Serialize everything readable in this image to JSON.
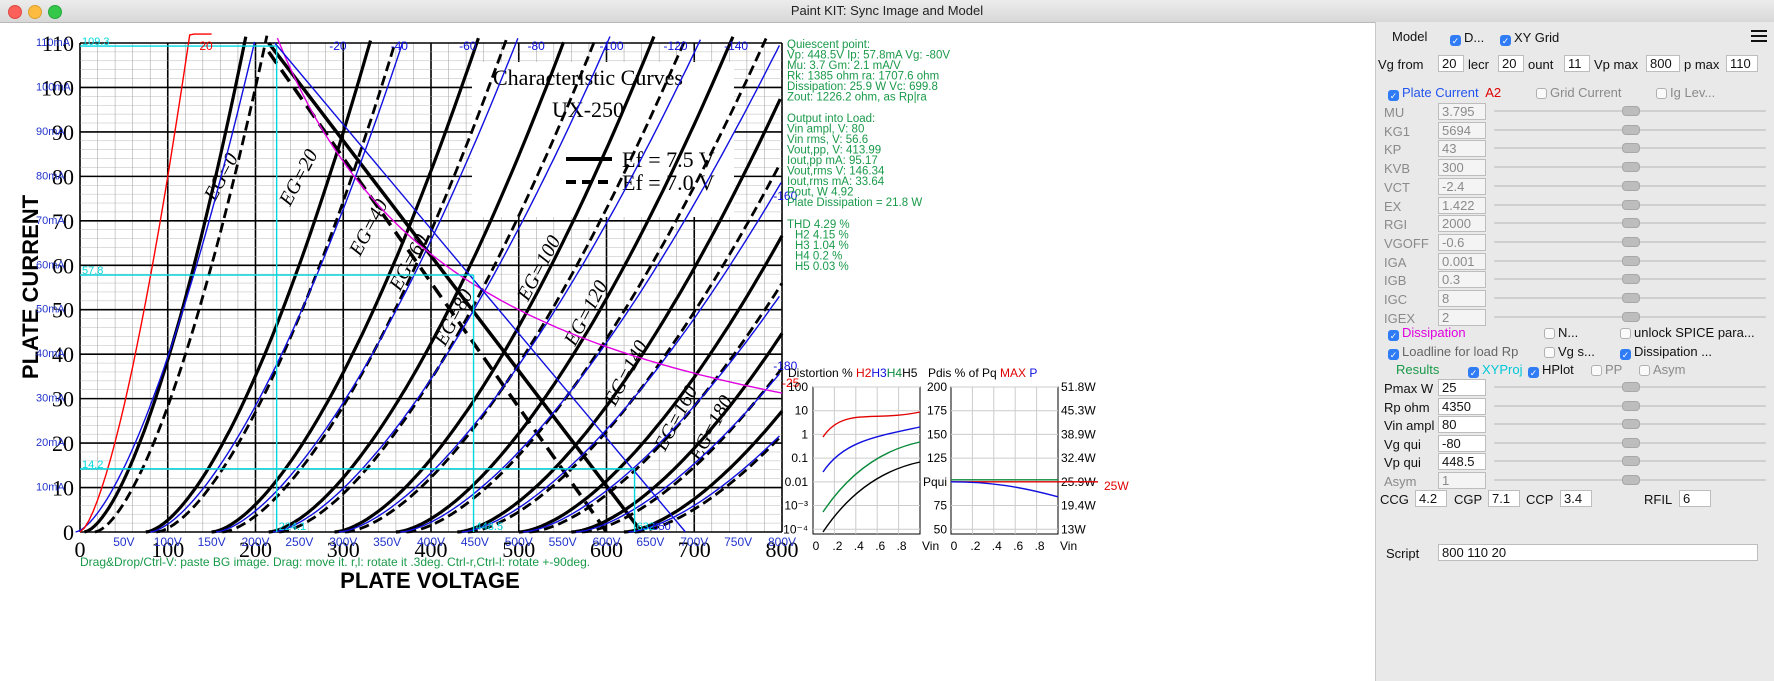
{
  "window": {
    "title": "Paint KIT: Sync Image and Model"
  },
  "image": {
    "title_line1": "Characteristic Curves",
    "title_line2": "UX-250",
    "legend_solid": "Ef = 7.5 V",
    "legend_dashed": "Ef = 7.0 V",
    "y_axis_title": "PLATE CURRENT",
    "x_axis_title": "PLATE VOLTAGE",
    "y_ticks": [
      "0",
      "10",
      "20",
      "30",
      "40",
      "50",
      "60",
      "70",
      "80",
      "90",
      "100",
      "110"
    ],
    "x_ticks": [
      "0",
      "100",
      "200",
      "300",
      "400",
      "500",
      "600",
      "700",
      "800"
    ],
    "curve_labels": [
      "EG=0",
      "EG=20",
      "EG=40",
      "EG=60",
      "EG=80",
      "EG=100",
      "EG=120",
      "EG=140",
      "EG=160",
      "EG=180"
    ]
  },
  "overlay": {
    "y_ticks_ma": [
      "10mA",
      "20mA",
      "30mA",
      "40mA",
      "50mA",
      "60mA",
      "70mA",
      "80mA",
      "90mA",
      "100mA",
      "110mA"
    ],
    "x_ticks_v": [
      "50V",
      "100V",
      "150V",
      "200V",
      "250V",
      "300V",
      "350V",
      "400V",
      "450V",
      "500V",
      "550V",
      "600V",
      "650V",
      "700V",
      "750V",
      "800V"
    ],
    "curve_vg": [
      "20",
      "-20",
      "-40",
      "-60",
      "-80",
      "-100",
      "-120",
      "-140",
      "-160",
      "-180",
      "-25"
    ],
    "cyan_y": [
      "109.3",
      "57.8",
      "14.2"
    ],
    "cyan_x": [
      "224.1",
      "448.5",
      "632",
      "650"
    ],
    "hint": "Drag&Drop/Ctrl-V: paste BG image. Drag: move it. r,l: rotate it .3deg. Ctrl-r,Ctrl-l: rotate +-90deg.",
    "quiescent": [
      "Quiescent point:",
      "Vp: 448.5V  Ip: 57.8mA  Vg: -80V",
      "Mu: 3.7 Gm: 2.1 mA/V",
      "Rk: 1385 ohm ra: 1707.6 ohm",
      "Dissipation: 25.9 W Vc: 699.8",
      "Zout: 1226.2 ohm, as Rp|ra"
    ],
    "output": [
      "Output into Load:",
      "Vin ampl, V: 80",
      "Vin rms,  V: 56.6",
      "Vout,pp,   V: 413.99",
      "Iout,pp   mA: 95.17",
      "Vout,rms   V: 146.34",
      "Iout,rms  mA: 33.64",
      "Pout, W      4.92",
      "Plate Dissipation = 21.8 W"
    ],
    "harmonics": [
      "THD 4.29 %",
      "H2 4.15 %",
      "H3 1.04 %",
      "H4 0.2 %",
      "H5 0.03 %"
    ]
  },
  "dist_chart": {
    "title_prefix": "Distortion % ",
    "h2": "H2",
    "h3": "H3",
    "h4": "H4",
    "h5": "H5",
    "y_ticks": [
      "100",
      "10",
      "1",
      "0.1",
      "0.01",
      "10⁻³",
      "10⁻⁴"
    ],
    "x_ticks": [
      "0",
      ".2",
      ".4",
      ".6",
      ".8"
    ],
    "x_label": "Vin"
  },
  "pdis_chart": {
    "title_prefix": "Pdis % of Pq ",
    "max_label": "MAX",
    "p_label": "P",
    "y_ticks": [
      "200",
      "175",
      "150",
      "125",
      "Pqui",
      "75",
      "50"
    ],
    "right_ticks": [
      "51.8W",
      "45.3W",
      "38.9W",
      "32.4W",
      "25.9W",
      "19.4W",
      "13W"
    ],
    "max_value_label": "25W",
    "x_ticks": [
      "0",
      ".2",
      ".4",
      ".6",
      ".8"
    ],
    "x_label": "Vin"
  },
  "panel": {
    "model_label": "Model",
    "d_label": "D...",
    "xygrid_label": "XY Grid",
    "vg_from_label": "Vg from",
    "vg_from": "20",
    "lecr_label": "lecr",
    "lecr": "20",
    "ount_label": "ount",
    "ount": "11",
    "vpmax_label": "Vp max",
    "vpmax": "800",
    "ipmax_label": "p max",
    "ipmax": "110",
    "plate_current": "Plate Current",
    "a2": "A2",
    "grid_current": "Grid Current",
    "ig_lev": "Ig Lev...",
    "params": [
      {
        "name": "MU",
        "value": "3.795"
      },
      {
        "name": "KG1",
        "value": "5694"
      },
      {
        "name": "KP",
        "value": "43"
      },
      {
        "name": "KVB",
        "value": "300"
      },
      {
        "name": "VCT",
        "value": "-2.4"
      },
      {
        "name": "EX",
        "value": "1.422"
      },
      {
        "name": "RGI",
        "value": "2000"
      },
      {
        "name": "VGOFF",
        "value": "-0.6"
      },
      {
        "name": "IGA",
        "value": "0.001"
      },
      {
        "name": "IGB",
        "value": "0.3"
      },
      {
        "name": "IGC",
        "value": "8"
      },
      {
        "name": "IGEX",
        "value": "2"
      }
    ],
    "dissipation": "Dissipation",
    "n_label": "N...",
    "unlock": "unlock SPICE para...",
    "loadline": "Loadline for load Rp",
    "vgs": "Vg s...",
    "dissipation2": "Dissipation ...",
    "results": "Results",
    "xyproj": "XYProj",
    "hplot": "HPlot",
    "pp": "PP",
    "asym_cb": "Asym",
    "load_params": [
      {
        "name": "Pmax W",
        "value": "25"
      },
      {
        "name": "Rp ohm",
        "value": "4350"
      },
      {
        "name": "Vin ampl",
        "value": "80"
      },
      {
        "name": "Vg qui",
        "value": "-80"
      },
      {
        "name": "Vp qui",
        "value": "448.5"
      },
      {
        "name": "Asym",
        "value": "1"
      }
    ],
    "ccg_label": "CCG",
    "ccg": "4.2",
    "cgp_label": "CGP",
    "cgp": "7.1",
    "ccp_label": "CCP",
    "ccp": "3.4",
    "rfil_label": "RFIL",
    "rfil": "6",
    "script_label": "Script",
    "script": "800 110 20"
  },
  "colors": {
    "cyan": "#00d8e0",
    "green_text": "#1a9a4a",
    "blue_curve": "#1010e0",
    "magenta": "#e000e0",
    "red": "#ff0000",
    "accent": "#2f7cf6"
  }
}
